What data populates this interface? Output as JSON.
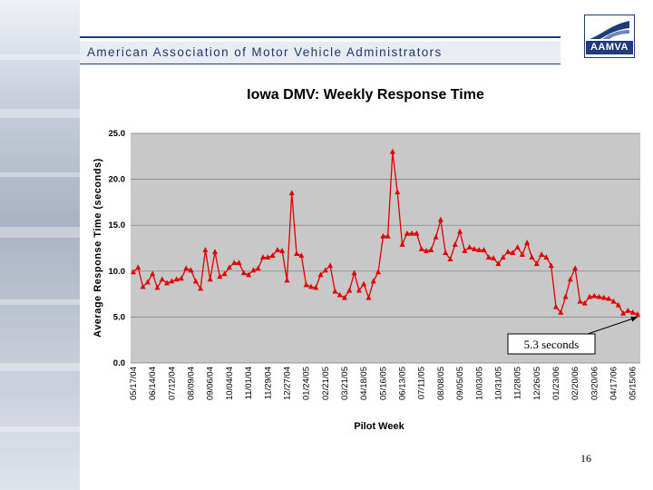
{
  "header": {
    "title": "American Association of Motor Vehicle Administrators",
    "logo_text": "AAMVA"
  },
  "slide": {
    "number": "16"
  },
  "colors": {
    "series": "#e00000",
    "plot_bg": "#c8c8c8",
    "header_text": "#1e3670"
  },
  "chart_data": {
    "type": "line",
    "title": "Iowa DMV: Weekly Response Time",
    "xlabel": "Pilot Week",
    "ylabel": "Average Response Time (seconds)",
    "ylim": [
      0,
      25
    ],
    "yticks": [
      "0.0",
      "5.0",
      "10.0",
      "15.0",
      "20.0",
      "25.0"
    ],
    "xticks": [
      "05/17/04",
      "06/14/04",
      "07/12/04",
      "08/09/04",
      "09/06/04",
      "10/04/04",
      "11/01/04",
      "11/29/04",
      "12/27/04",
      "01/24/05",
      "02/21/05",
      "03/21/05",
      "04/18/05",
      "05/16/05",
      "06/13/05",
      "07/11/05",
      "08/08/05",
      "09/05/05",
      "10/03/05",
      "10/31/05",
      "11/28/05",
      "12/26/05",
      "01/23/06",
      "02/20/06",
      "03/20/06",
      "04/17/06",
      "05/15/06"
    ],
    "series": [
      {
        "name": "Weekly Response Time",
        "values": [
          9.9,
          10.4,
          8.3,
          8.8,
          9.7,
          8.2,
          9.1,
          8.7,
          8.9,
          9.1,
          9.2,
          10.3,
          10.1,
          8.9,
          8.1,
          12.3,
          9.1,
          12.1,
          9.4,
          9.7,
          10.4,
          10.9,
          10.9,
          9.8,
          9.6,
          10.1,
          10.3,
          11.5,
          11.5,
          11.7,
          12.3,
          12.2,
          9.0,
          18.5,
          11.9,
          11.7,
          8.5,
          8.3,
          8.2,
          9.6,
          10.1,
          10.6,
          7.8,
          7.4,
          7.1,
          7.9,
          9.8,
          7.9,
          8.6,
          7.1,
          8.9,
          9.9,
          13.8,
          13.8,
          23.0,
          18.6,
          12.9,
          14.1,
          14.1,
          14.1,
          12.4,
          12.2,
          12.3,
          13.7,
          15.6,
          12.0,
          11.3,
          12.9,
          14.3,
          12.2,
          12.6,
          12.4,
          12.3,
          12.3,
          11.5,
          11.4,
          10.8,
          11.5,
          12.1,
          12.0,
          12.6,
          11.8,
          13.1,
          11.5,
          10.8,
          11.8,
          11.5,
          10.6,
          6.1,
          5.5,
          7.2,
          9.1,
          10.3,
          6.7,
          6.5,
          7.2,
          7.3,
          7.2,
          7.1,
          7.0,
          6.7,
          6.3,
          5.4,
          5.7,
          5.5,
          5.3
        ]
      }
    ],
    "annotations": [
      {
        "text": "5.3 seconds",
        "points_to_index": 105
      }
    ]
  }
}
